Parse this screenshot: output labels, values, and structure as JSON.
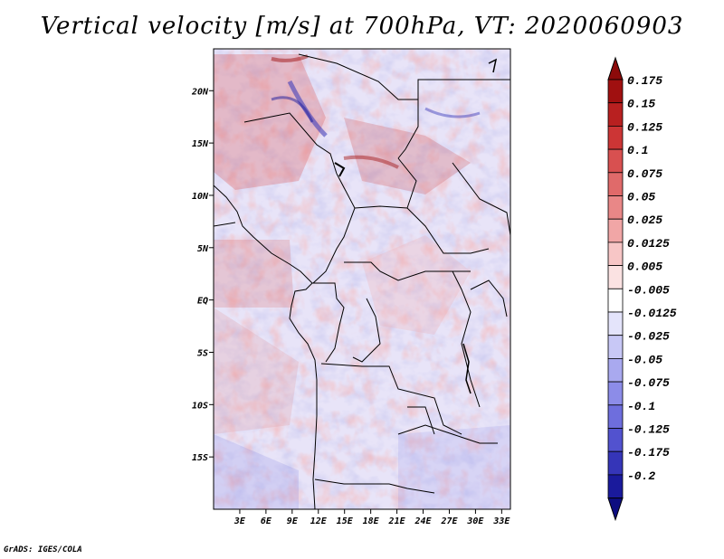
{
  "map": {
    "title": "Vertical velocity [m/s] at 700hPa, VT: 2020060903",
    "credit": "GrADS: IGES/COLA",
    "variable": "Vertical velocity",
    "units": "m/s",
    "level": "700hPa",
    "valid_time": "2020060903",
    "lon_range": [
      0,
      34
    ],
    "lat_range": [
      -20,
      24
    ],
    "x_ticks": [
      {
        "value": 3,
        "label": "3E"
      },
      {
        "value": 6,
        "label": "6E"
      },
      {
        "value": 9,
        "label": "9E"
      },
      {
        "value": 12,
        "label": "12E"
      },
      {
        "value": 15,
        "label": "15E"
      },
      {
        "value": 18,
        "label": "18E"
      },
      {
        "value": 21,
        "label": "21E"
      },
      {
        "value": 24,
        "label": "24E"
      },
      {
        "value": 27,
        "label": "27E"
      },
      {
        "value": 30,
        "label": "30E"
      },
      {
        "value": 33,
        "label": "33E"
      }
    ],
    "y_ticks": [
      {
        "value": 20,
        "label": "20N"
      },
      {
        "value": 15,
        "label": "15N"
      },
      {
        "value": 10,
        "label": "10N"
      },
      {
        "value": 5,
        "label": "5N"
      },
      {
        "value": 0,
        "label": "EQ"
      },
      {
        "value": -5,
        "label": "5S"
      },
      {
        "value": -10,
        "label": "10S"
      },
      {
        "value": -15,
        "label": "15S"
      }
    ]
  },
  "colorbar": {
    "levels": [
      {
        "label": "0.175",
        "color": "#a01010"
      },
      {
        "label": "0.15",
        "color": "#b82020"
      },
      {
        "label": "0.125",
        "color": "#cc3535"
      },
      {
        "label": "0.1",
        "color": "#d85050"
      },
      {
        "label": "0.075",
        "color": "#e06a6a"
      },
      {
        "label": "0.05",
        "color": "#e98787"
      },
      {
        "label": "0.025",
        "color": "#f1a6a6"
      },
      {
        "label": "0.0125",
        "color": "#f7c6c6"
      },
      {
        "label": "0.005",
        "color": "#fbe2e2"
      },
      {
        "label": "-0.005",
        "color": "#ffffff"
      },
      {
        "label": "-0.0125",
        "color": "#e4e4fb"
      },
      {
        "label": "-0.025",
        "color": "#c8c8f6"
      },
      {
        "label": "-0.05",
        "color": "#a9a9ef"
      },
      {
        "label": "-0.075",
        "color": "#8c8ce8"
      },
      {
        "label": "-0.1",
        "color": "#6e6edd"
      },
      {
        "label": "-0.125",
        "color": "#5252cf"
      },
      {
        "label": "-0.175",
        "color": "#3535b8"
      },
      {
        "label": "-0.2",
        "color": "#1a1a9c"
      }
    ],
    "top_arrow_color": "#8c0a0a",
    "bottom_arrow_color": "#0d0d80"
  }
}
